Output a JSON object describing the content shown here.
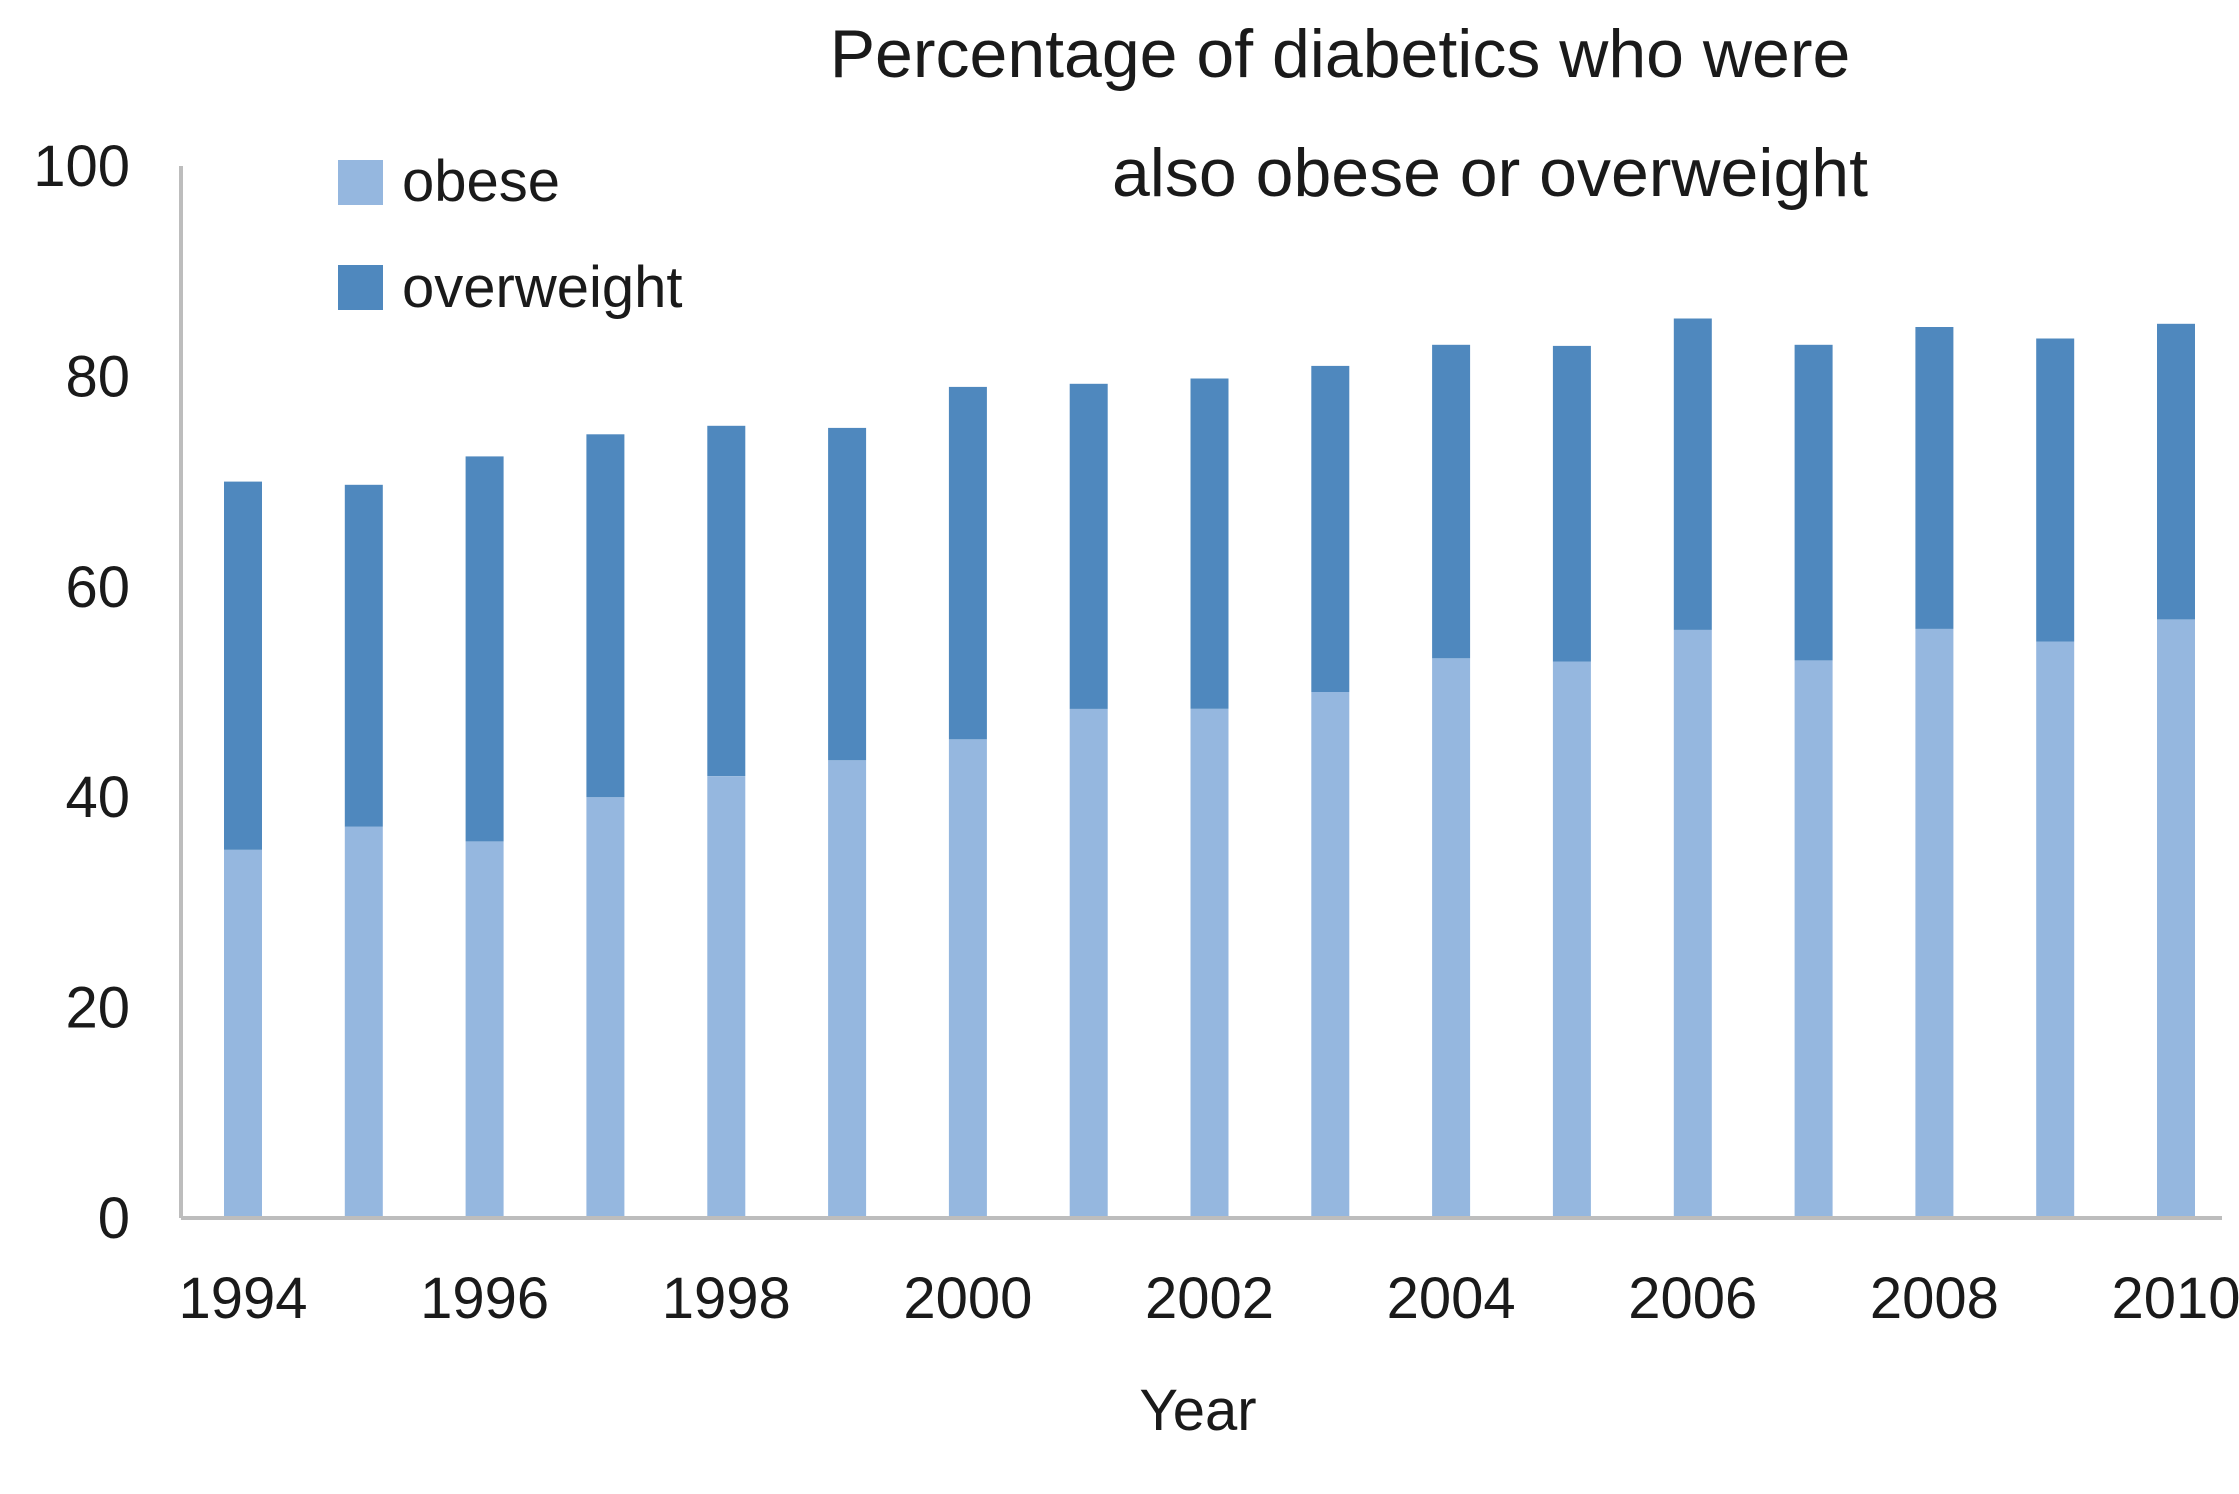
{
  "chart_data": {
    "type": "bar",
    "stacked": true,
    "title_lines": [
      "Percentage of diabetics who were",
      "also obese or overweight"
    ],
    "xlabel": "Year",
    "ylabel": "",
    "ylim": [
      0,
      100
    ],
    "yticks": [
      0,
      20,
      40,
      60,
      80,
      100
    ],
    "xtick_labels": [
      "1994",
      "1996",
      "1998",
      "2000",
      "2002",
      "2004",
      "2006",
      "2008",
      "2010"
    ],
    "categories": [
      "1994",
      "1995",
      "1996",
      "1997",
      "1998",
      "1999",
      "2000",
      "2001",
      "2002",
      "2003",
      "2004",
      "2005",
      "2006",
      "2007",
      "2008",
      "2009",
      "2010"
    ],
    "series": [
      {
        "name": "obese",
        "color": "#95b7df",
        "values": [
          35,
          37.2,
          35.8,
          40,
          42,
          43.5,
          45.5,
          48.4,
          48.4,
          50,
          53.2,
          52.9,
          55.9,
          53,
          56,
          54.8,
          56.9
        ]
      },
      {
        "name": "overweight",
        "color": "#4f88be",
        "values": [
          35,
          32.5,
          36.6,
          34.5,
          33.3,
          31.6,
          33.5,
          30.9,
          31.4,
          31,
          29.8,
          30,
          29.6,
          30,
          28.7,
          28.8,
          28.1
        ]
      }
    ],
    "legend": {
      "position": "top-left",
      "entries": [
        "obese",
        "overweight"
      ]
    },
    "grid": false
  }
}
